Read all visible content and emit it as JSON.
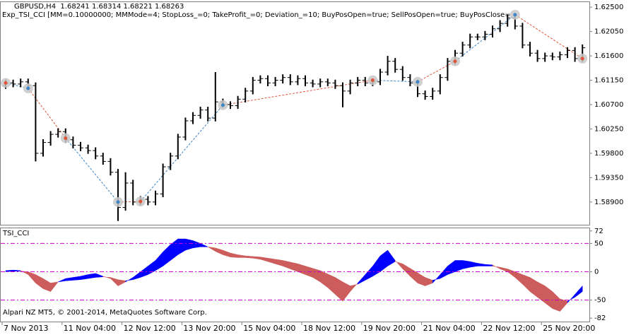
{
  "chart_data": [
    {
      "type": "ohlc",
      "title": "GBPUSD,H4  1.68241 1.68314 1.68221 1.68263",
      "subtitle": "Exp_TSI_CCI [MM=0.10000000; MMMode=4; StopLoss_=0; TakeProfit_=0; Deviation_=10; BuyPosOpen=true; SellPosOpen=true; BuyPosClose=",
      "categories": [
        "7 Nov 2013",
        null,
        null,
        null,
        null,
        null,
        null,
        null,
        "11 Nov 04:00",
        null,
        null,
        null,
        null,
        null,
        null,
        null,
        "12 Nov 12:00",
        null,
        null,
        null,
        null,
        null,
        null,
        null,
        "13 Nov 20:00",
        null,
        null,
        null,
        null,
        null,
        null,
        null,
        "15 Nov 04:00",
        null,
        null,
        null,
        null,
        null,
        null,
        null,
        "18 Nov 12:00",
        null,
        null,
        null,
        null,
        null,
        null,
        null,
        "19 Nov 20:00",
        null,
        null,
        null,
        null,
        null,
        null,
        null,
        "21 Nov 04:00",
        null,
        null,
        null,
        null,
        null,
        null,
        null,
        "22 Nov 12:00",
        null,
        null,
        null,
        null,
        null,
        null,
        null,
        "25 Nov 20:00",
        null,
        null,
        null,
        null,
        null
      ],
      "open": [
        1.6105,
        1.611,
        1.6108,
        1.6112,
        1.6105,
        1.598,
        1.6,
        1.6015,
        1.602,
        1.6005,
        1.5995,
        1.599,
        1.5985,
        1.5975,
        1.5965,
        1.5945,
        1.588,
        1.5925,
        1.589,
        1.5895,
        1.589,
        1.5905,
        1.5955,
        1.5975,
        1.601,
        1.604,
        1.605,
        1.606,
        1.6045,
        1.6075,
        1.607,
        1.6068,
        1.608,
        1.6095,
        1.6115,
        1.6118,
        1.611,
        1.6115,
        1.612,
        1.6112,
        1.6118,
        1.611,
        1.6108,
        1.6112,
        1.611,
        1.6105,
        1.6095,
        1.611,
        1.6115,
        1.611,
        1.6112,
        1.613,
        1.615,
        1.6135,
        1.612,
        1.611,
        1.609,
        1.6085,
        1.6095,
        1.612,
        1.615,
        1.6165,
        1.618,
        1.6195,
        1.6195,
        1.62,
        1.621,
        1.622,
        1.623,
        1.6215,
        1.618,
        1.6165,
        1.6155,
        1.616,
        1.6158,
        1.6162,
        1.617,
        1.6155
      ],
      "high": [
        1.6116,
        1.6116,
        1.6118,
        1.6118,
        1.6111,
        1.6006,
        1.6021,
        1.6026,
        1.6026,
        1.6011,
        1.6001,
        1.5996,
        1.5991,
        1.5981,
        1.5971,
        1.5951,
        1.5945,
        1.5931,
        1.5901,
        1.5901,
        1.5911,
        1.5961,
        1.5981,
        1.6016,
        1.6046,
        1.6056,
        1.6066,
        1.6066,
        1.613,
        1.6081,
        1.6076,
        1.6086,
        1.6101,
        1.6121,
        1.6124,
        1.6124,
        1.6121,
        1.6126,
        1.6126,
        1.6124,
        1.6124,
        1.6116,
        1.6118,
        1.6118,
        1.6116,
        1.6111,
        1.6116,
        1.6121,
        1.6121,
        1.6118,
        1.6136,
        1.616,
        1.6156,
        1.6141,
        1.6126,
        1.6116,
        1.6096,
        1.6101,
        1.6126,
        1.6156,
        1.6171,
        1.6186,
        1.6201,
        1.6201,
        1.6206,
        1.6216,
        1.6226,
        1.6236,
        1.6236,
        1.6221,
        1.6186,
        1.6171,
        1.6166,
        1.6166,
        1.6168,
        1.6176,
        1.6176,
        1.6181
      ],
      "low": [
        1.6099,
        1.6102,
        1.6102,
        1.6099,
        1.5965,
        1.5974,
        1.5994,
        1.6009,
        1.5999,
        1.5989,
        1.5984,
        1.5979,
        1.5969,
        1.5959,
        1.5939,
        1.5855,
        1.5874,
        1.5884,
        1.5884,
        1.5884,
        1.5884,
        1.5899,
        1.5949,
        1.5969,
        1.6004,
        1.6034,
        1.6044,
        1.6039,
        1.6039,
        1.6064,
        1.6062,
        1.6062,
        1.6074,
        1.6089,
        1.6109,
        1.6104,
        1.6104,
        1.6109,
        1.6106,
        1.6106,
        1.6104,
        1.6102,
        1.6102,
        1.6104,
        1.6099,
        1.6065,
        1.6089,
        1.6104,
        1.6104,
        1.6104,
        1.6106,
        1.6124,
        1.6129,
        1.6114,
        1.6104,
        1.6084,
        1.6079,
        1.6079,
        1.6089,
        1.6114,
        1.6144,
        1.6159,
        1.6174,
        1.6189,
        1.6189,
        1.6194,
        1.6204,
        1.6214,
        1.6209,
        1.6174,
        1.6159,
        1.6149,
        1.6149,
        1.6152,
        1.6152,
        1.6156,
        1.6149,
        1.6149
      ],
      "close": [
        1.611,
        1.6108,
        1.6112,
        1.6105,
        1.598,
        1.6,
        1.6015,
        1.602,
        1.6005,
        1.5995,
        1.599,
        1.5985,
        1.5975,
        1.5965,
        1.5945,
        1.588,
        1.5925,
        1.589,
        1.5895,
        1.589,
        1.5905,
        1.5955,
        1.5975,
        1.601,
        1.604,
        1.605,
        1.606,
        1.6045,
        1.6075,
        1.607,
        1.6068,
        1.608,
        1.6095,
        1.6115,
        1.6118,
        1.611,
        1.6115,
        1.612,
        1.6112,
        1.6118,
        1.611,
        1.6108,
        1.6112,
        1.611,
        1.6105,
        1.6095,
        1.611,
        1.6115,
        1.611,
        1.6112,
        1.613,
        1.615,
        1.6135,
        1.612,
        1.611,
        1.609,
        1.6085,
        1.6095,
        1.612,
        1.615,
        1.6165,
        1.618,
        1.6195,
        1.6195,
        1.62,
        1.621,
        1.622,
        1.623,
        1.6215,
        1.618,
        1.6165,
        1.6155,
        1.616,
        1.6158,
        1.6162,
        1.617,
        1.6155,
        1.6175
      ],
      "color": "#000000",
      "ylim": [
        1.5848,
        1.6258
      ],
      "yticks": [
        {
          "value": 1.625,
          "label": "1.62500"
        },
        {
          "value": 1.6205,
          "label": "1.62050"
        },
        {
          "value": 1.616,
          "label": "1.61600"
        },
        {
          "value": 1.6115,
          "label": "1.61150"
        },
        {
          "value": 1.607,
          "label": "1.60700"
        },
        {
          "value": 1.6025,
          "label": "1.60250"
        },
        {
          "value": 1.598,
          "label": "1.59800"
        },
        {
          "value": 1.5935,
          "label": "1.59350"
        },
        {
          "value": 1.589,
          "label": "1.58900"
        }
      ],
      "trades": {
        "x": [
          0,
          3,
          8,
          15,
          18,
          29,
          49,
          55,
          60,
          68,
          77
        ],
        "prices": [
          1.611,
          1.61,
          1.6008,
          1.589,
          1.5891,
          1.6069,
          1.6115,
          1.6112,
          1.615,
          1.6236,
          1.6155
        ],
        "colors": [
          "#3d85c6",
          "#e0553a"
        ]
      }
    },
    {
      "type": "band",
      "title": "TSI_CCI",
      "annotation": "Alpari NZ MT5, © 2001-2014, MetaQuotes Software Corp.",
      "values_a": [
        2,
        3,
        2,
        -5,
        -20,
        -30,
        -35,
        -18,
        -12,
        -10,
        -8,
        -5,
        -3,
        -8,
        -12,
        -25,
        -18,
        -10,
        0,
        10,
        20,
        35,
        48,
        58,
        58,
        55,
        50,
        44,
        36,
        30,
        26,
        25,
        25,
        24,
        22,
        18,
        14,
        10,
        5,
        0,
        -5,
        -10,
        -18,
        -28,
        -40,
        -52,
        -35,
        -20,
        -5,
        10,
        28,
        38,
        20,
        5,
        -8,
        -20,
        -25,
        -20,
        -5,
        10,
        20,
        20,
        18,
        15,
        13,
        12,
        5,
        0,
        -10,
        -22,
        -35,
        -45,
        -55,
        -65,
        -70,
        -55,
        -40,
        -25
      ],
      "values_b": [
        0,
        1,
        1,
        0,
        -5,
        -12,
        -20,
        -18,
        -16,
        -15,
        -14,
        -12,
        -10,
        -9,
        -10,
        -14,
        -16,
        -14,
        -10,
        -5,
        2,
        10,
        20,
        30,
        38,
        42,
        44,
        44,
        42,
        38,
        33,
        30,
        28,
        27,
        26,
        24,
        22,
        20,
        17,
        14,
        10,
        6,
        2,
        -4,
        -10,
        -18,
        -25,
        -22,
        -15,
        -8,
        0,
        10,
        18,
        14,
        6,
        -2,
        -10,
        -15,
        -12,
        -5,
        0,
        5,
        8,
        10,
        10,
        10,
        8,
        5,
        0,
        -5,
        -10,
        -18,
        -25,
        -35,
        -48,
        -52,
        -45,
        -35
      ],
      "up_color": "#0000ff",
      "down_color": "#cd5c5c",
      "ylim": [
        -88,
        78
      ],
      "yticks": [
        72,
        50,
        0,
        -50,
        -82
      ],
      "levels": [
        50,
        0,
        -50
      ],
      "level_color": "#cc00cc"
    }
  ]
}
